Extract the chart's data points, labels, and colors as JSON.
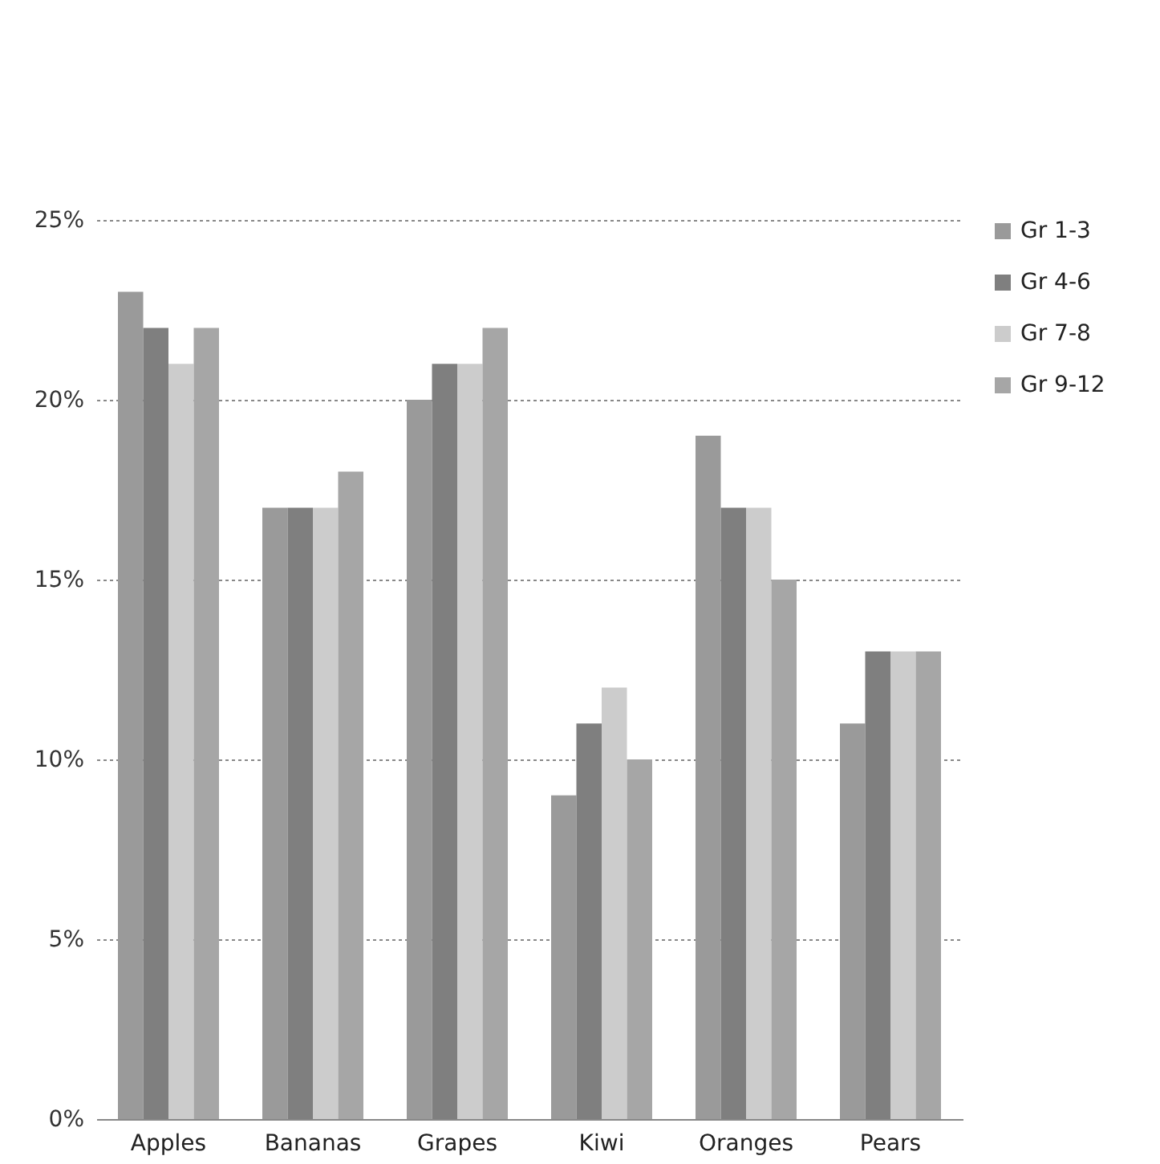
{
  "chart_data": {
    "type": "bar",
    "categories": [
      "Apples",
      "Bananas",
      "Grapes",
      "Kiwi",
      "Oranges",
      "Pears"
    ],
    "series": [
      {
        "name": "Gr 1-3",
        "color": "#9a9a9a",
        "values": [
          23,
          17,
          20,
          9,
          19,
          11
        ]
      },
      {
        "name": "Gr 4-6",
        "color": "#7f7f7f",
        "values": [
          22,
          17,
          21,
          11,
          17,
          13
        ]
      },
      {
        "name": "Gr 7-8",
        "color": "#cccccc",
        "values": [
          21,
          17,
          21,
          12,
          17,
          13
        ]
      },
      {
        "name": "Gr 9-12",
        "color": "#a6a6a6",
        "values": [
          22,
          18,
          22,
          10,
          15,
          13
        ]
      }
    ],
    "ylim": [
      0,
      25
    ],
    "yticks": [
      {
        "value": 0,
        "label": "0%"
      },
      {
        "value": 5,
        "label": "5%"
      },
      {
        "value": 10,
        "label": "10%"
      },
      {
        "value": 15,
        "label": "15%"
      },
      {
        "value": 20,
        "label": "20%"
      },
      {
        "value": 25,
        "label": "25%"
      }
    ],
    "grid": "y",
    "legend": "right"
  }
}
